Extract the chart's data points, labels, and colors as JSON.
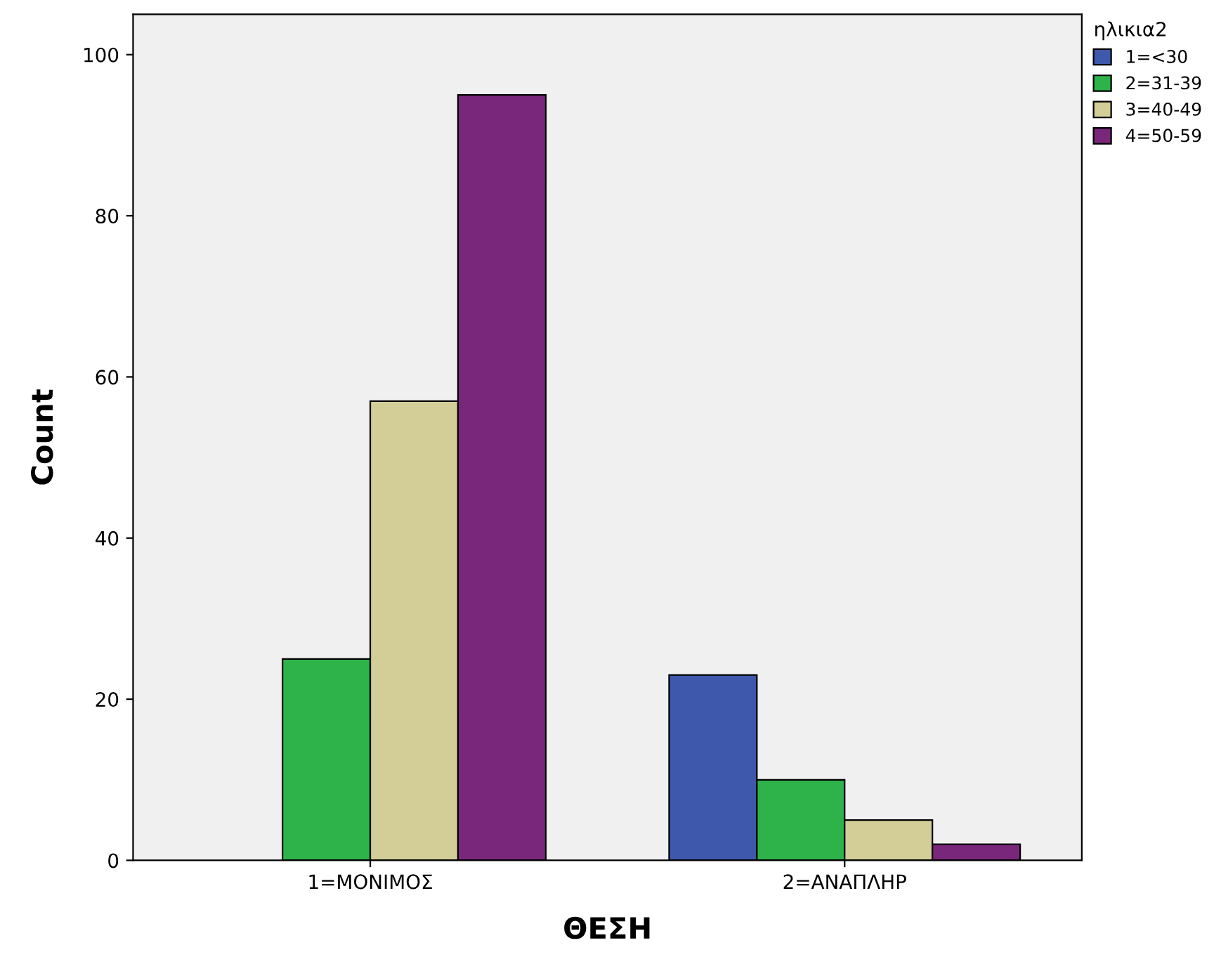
{
  "chart_data": {
    "type": "bar",
    "xlabel": "ΘΕΣΗ",
    "ylabel": "Count",
    "legend_title": "ηλικια2",
    "categories": [
      "1=ΜΟΝΙΜΟΣ",
      "2=ΑΝΑΠΛΗΡ"
    ],
    "series": [
      {
        "name": "1=<30",
        "color": "#3e58ac",
        "values": [
          null,
          23
        ]
      },
      {
        "name": "2=31-39",
        "color": "#2db34a",
        "values": [
          25,
          10
        ]
      },
      {
        "name": "3=40-49",
        "color": "#d3ce97",
        "values": [
          57,
          5
        ]
      },
      {
        "name": "4=50-59",
        "color": "#79277b",
        "values": [
          95,
          2
        ]
      }
    ],
    "ylim": [
      0,
      105
    ],
    "yticks": [
      0,
      20,
      40,
      60,
      80,
      100
    ],
    "grid": false,
    "legend": "top right"
  }
}
